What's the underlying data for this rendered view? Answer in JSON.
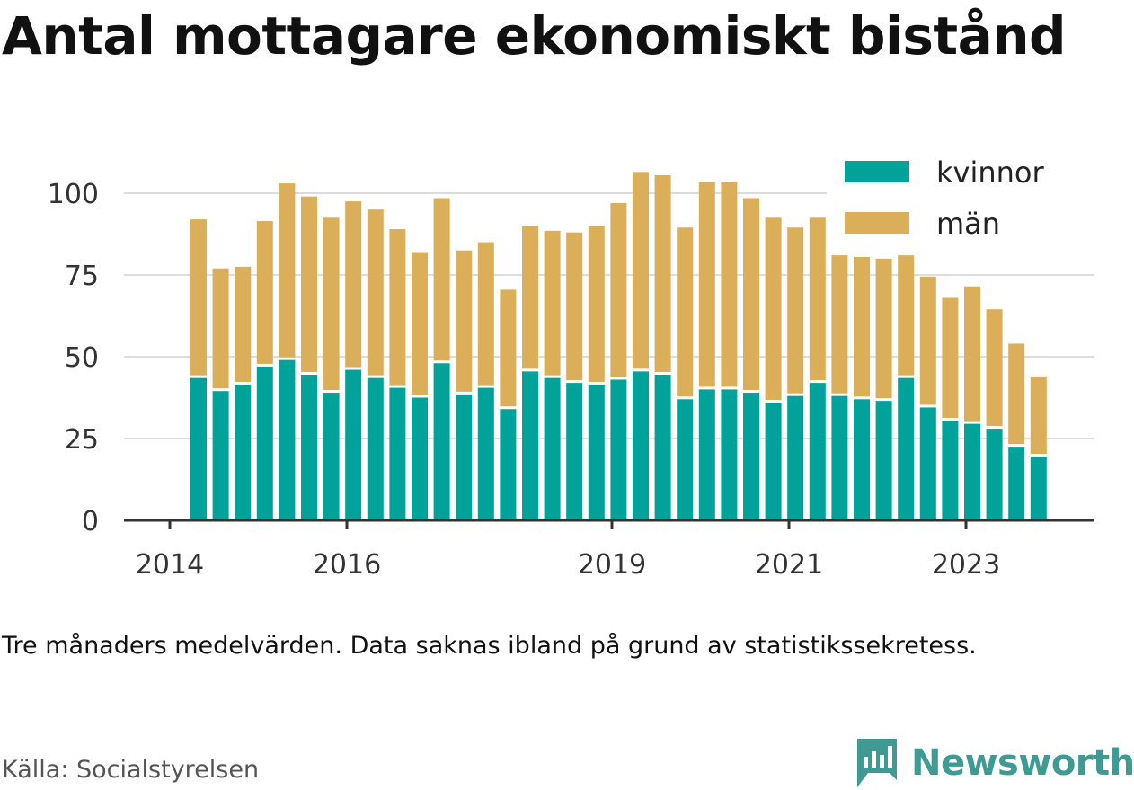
{
  "title": "Antal mottagare ekonomiskt bistånd",
  "note": "Tre månaders medelvärden. Data saknas ibland på grund av statistikssekretess.",
  "source": "Källa: Socialstyrelsen",
  "brand": "Newsworthy",
  "colors": {
    "kvinnor": "#00a29a",
    "man": "#dbae5a",
    "grid": "#dddddd",
    "axis": "#333333",
    "brand": "#3f9a93"
  },
  "chart_data": {
    "type": "bar",
    "stacked": true,
    "x_ticks": [
      "2014",
      "2016",
      "2019",
      "2021",
      "2023"
    ],
    "y_ticks": [
      "0",
      "25",
      "50",
      "75",
      "100"
    ],
    "ylim": [
      0,
      110
    ],
    "grid": true,
    "legend_position": "top-right",
    "series": [
      {
        "name": "kvinnor",
        "values": [
          43.5,
          39.5,
          41.5,
          47,
          49,
          44.5,
          39,
          46,
          43.5,
          40.5,
          37.5,
          48,
          38.5,
          40.5,
          34,
          45.5,
          43.5,
          42,
          41.5,
          43,
          45.5,
          44.5,
          37,
          40,
          40,
          39,
          36,
          38,
          42,
          38,
          37,
          36.5,
          43.5,
          34.5,
          30.5,
          29.5,
          28,
          22.5,
          19.5
        ]
      },
      {
        "name": "män",
        "values": [
          48.5,
          37.5,
          36,
          44.5,
          54,
          54.5,
          53.5,
          51.5,
          51.5,
          48.5,
          44.5,
          50.5,
          44,
          44.5,
          36.5,
          44.5,
          45,
          46,
          48.5,
          54,
          61,
          61,
          52.5,
          63.5,
          63.5,
          59.5,
          56.5,
          51.5,
          50.5,
          43,
          43.5,
          43.5,
          37.5,
          40,
          37.5,
          42,
          36.5,
          31.5,
          24.5
        ]
      }
    ]
  }
}
